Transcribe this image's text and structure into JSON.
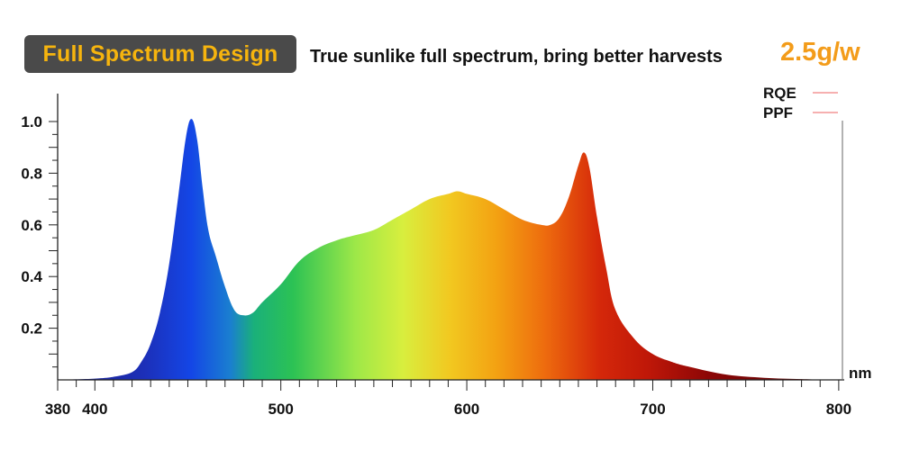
{
  "header": {
    "badge": "Full Spectrum Design",
    "tagline": "True sunlike full spectrum, bring better harvests",
    "highlight": "2.5g/w"
  },
  "colors": {
    "badge_bg": "#4a4a4a",
    "badge_text": "#f6b40e",
    "highlight": "#f39c1a",
    "legend_line": "#f08080"
  },
  "chart_data": {
    "type": "area",
    "title": "",
    "xlabel": "nm",
    "ylabel": "",
    "xlim": [
      380,
      800
    ],
    "ylim": [
      0,
      1.0
    ],
    "x_ticks": [
      380,
      400,
      500,
      600,
      700,
      800
    ],
    "y_ticks": [
      "0.2",
      "0.4",
      "0.6",
      "0.8",
      "1.0"
    ],
    "grid": false,
    "legend_position": "top-right",
    "legend": [
      "RQE",
      "PPF"
    ],
    "fill": "wavelength-colored spectrum gradient (blue to deep red)",
    "x": [
      380,
      400,
      410,
      420,
      425,
      430,
      435,
      440,
      445,
      449,
      452,
      455,
      458,
      461,
      465,
      470,
      475,
      480,
      485,
      490,
      500,
      510,
      520,
      530,
      540,
      550,
      560,
      570,
      580,
      590,
      595,
      600,
      610,
      620,
      630,
      640,
      645,
      650,
      655,
      660,
      663,
      666,
      670,
      675,
      680,
      690,
      700,
      710,
      720,
      740,
      760,
      780,
      800
    ],
    "y": [
      0.0,
      0.005,
      0.012,
      0.03,
      0.07,
      0.14,
      0.26,
      0.45,
      0.72,
      0.94,
      1.01,
      0.93,
      0.74,
      0.58,
      0.48,
      0.36,
      0.27,
      0.25,
      0.26,
      0.3,
      0.37,
      0.46,
      0.51,
      0.54,
      0.56,
      0.58,
      0.62,
      0.66,
      0.7,
      0.72,
      0.73,
      0.72,
      0.7,
      0.66,
      0.62,
      0.6,
      0.6,
      0.63,
      0.71,
      0.83,
      0.88,
      0.82,
      0.63,
      0.43,
      0.27,
      0.16,
      0.1,
      0.07,
      0.05,
      0.02,
      0.008,
      0.003,
      0.0
    ]
  }
}
